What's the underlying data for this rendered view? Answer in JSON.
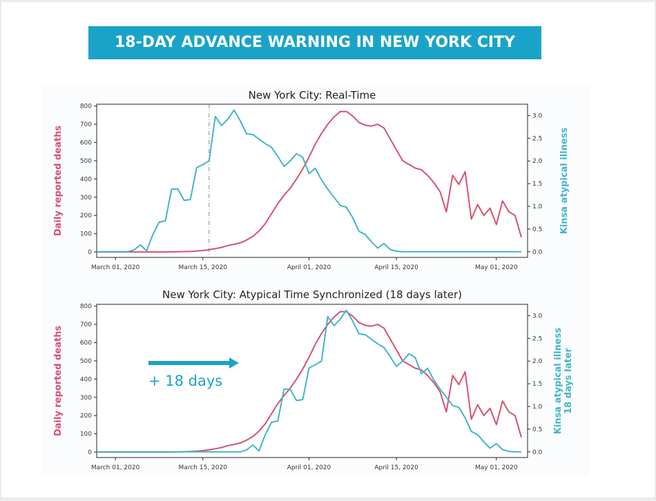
{
  "banner": {
    "title": "18-DAY ADVANCE WARNING IN NEW YORK CITY"
  },
  "colors": {
    "deaths": "#d6506f",
    "illness": "#41b4cc",
    "banner": "#1aa3c8"
  },
  "chart_data": [
    {
      "type": "line",
      "title": "New York City: Real-Time",
      "xlabel": "",
      "ylabel": "Daily reported deaths",
      "ylabel_right": "Kinsa atypical illness",
      "ylabel_right2": "",
      "annotation": "",
      "x_ticks": [
        "March 01, 2020",
        "March 15, 2020",
        "April 01, 2020",
        "April 15, 2020",
        "May 01, 2020"
      ],
      "x_tick_days": [
        0,
        14,
        31,
        45,
        61
      ],
      "xlim_days": [
        -3,
        66
      ],
      "y_left_ticks": [
        0,
        100,
        200,
        300,
        400,
        500,
        600,
        700,
        800
      ],
      "y_left_lim": [
        -30,
        810
      ],
      "y_right_ticks": [
        "0.0",
        "0.5",
        "1.0",
        "1.5",
        "2.0",
        "2.5",
        "3.0"
      ],
      "y_right_lim": [
        -0.125,
        3.25
      ],
      "vline_day": 15,
      "series": [
        {
          "name": "Daily reported deaths",
          "axis": "left",
          "color": "#d6506f",
          "x": [
            -3,
            0,
            2,
            4,
            6,
            8,
            10,
            12,
            13,
            14,
            15,
            16,
            17,
            18,
            19,
            20,
            21,
            22,
            23,
            24,
            25,
            26,
            27,
            28,
            29,
            30,
            31,
            32,
            33,
            34,
            35,
            36,
            37,
            38,
            39,
            40,
            41,
            42,
            43,
            44,
            45,
            46,
            47,
            48,
            49,
            50,
            51,
            52,
            53,
            54,
            55,
            56,
            57,
            58,
            59,
            60,
            61,
            62,
            63,
            64,
            65
          ],
          "y": [
            0,
            0,
            0,
            0,
            0,
            0,
            1,
            3,
            5,
            8,
            12,
            18,
            25,
            35,
            42,
            50,
            65,
            85,
            115,
            155,
            210,
            265,
            310,
            350,
            400,
            455,
            520,
            590,
            650,
            700,
            740,
            770,
            770,
            745,
            710,
            695,
            690,
            700,
            680,
            620,
            560,
            500,
            480,
            460,
            450,
            420,
            380,
            330,
            220,
            420,
            370,
            440,
            180,
            260,
            200,
            240,
            150,
            280,
            220,
            200,
            80
          ]
        },
        {
          "name": "Kinsa atypical illness",
          "axis": "right",
          "color": "#41b4cc",
          "x": [
            -3,
            0,
            2,
            3,
            4,
            5,
            6,
            7,
            8,
            9,
            10,
            11,
            12,
            13,
            14,
            15,
            16,
            17,
            18,
            19,
            20,
            21,
            22,
            23,
            24,
            25,
            26,
            27,
            28,
            29,
            30,
            31,
            32,
            33,
            34,
            35,
            36,
            37,
            38,
            39,
            40,
            41,
            42,
            43,
            44,
            45,
            46,
            47,
            48,
            49,
            50,
            51,
            52,
            53,
            54,
            55,
            56,
            57,
            58,
            59,
            60,
            61,
            62,
            63,
            64,
            65
          ],
          "y": [
            0,
            0,
            0,
            0.04,
            0.15,
            0.02,
            0.38,
            0.65,
            0.68,
            1.38,
            1.38,
            1.13,
            1.15,
            1.85,
            1.92,
            2.0,
            2.98,
            2.78,
            2.92,
            3.12,
            2.88,
            2.6,
            2.58,
            2.48,
            2.38,
            2.3,
            2.1,
            1.88,
            2.0,
            2.16,
            2.08,
            1.72,
            1.84,
            1.58,
            1.38,
            1.2,
            1.02,
            0.98,
            0.75,
            0.45,
            0.38,
            0.22,
            0.08,
            0.18,
            0.05,
            0.01,
            0,
            0,
            0,
            0,
            0,
            0,
            0,
            0,
            0,
            0,
            0,
            0,
            0,
            0,
            0,
            0,
            0,
            0,
            0,
            0
          ]
        }
      ]
    },
    {
      "type": "line",
      "title": "New York City: Atypical Time Synchronized (18 days later)",
      "xlabel": "",
      "ylabel": "Daily reported deaths",
      "ylabel_right": "Kinsa atypical illness",
      "ylabel_right2": "18 days later",
      "annotation": "+ 18 days",
      "x_ticks": [
        "March 01, 2020",
        "March 15, 2020",
        "April 01, 2020",
        "April 15, 2020",
        "May 01, 2020"
      ],
      "x_tick_days": [
        0,
        14,
        31,
        45,
        61
      ],
      "xlim_days": [
        -3,
        66
      ],
      "y_left_ticks": [
        0,
        100,
        200,
        300,
        400,
        500,
        600,
        700,
        800
      ],
      "y_left_lim": [
        -30,
        810
      ],
      "y_right_ticks": [
        "0.0",
        "0.5",
        "1.0",
        "1.5",
        "2.0",
        "2.5",
        "3.0"
      ],
      "y_right_lim": [
        -0.125,
        3.25
      ],
      "vline_day": null,
      "series": [
        {
          "name": "Daily reported deaths",
          "axis": "left",
          "color": "#d6506f",
          "x": [
            -3,
            0,
            2,
            4,
            6,
            8,
            10,
            12,
            13,
            14,
            15,
            16,
            17,
            18,
            19,
            20,
            21,
            22,
            23,
            24,
            25,
            26,
            27,
            28,
            29,
            30,
            31,
            32,
            33,
            34,
            35,
            36,
            37,
            38,
            39,
            40,
            41,
            42,
            43,
            44,
            45,
            46,
            47,
            48,
            49,
            50,
            51,
            52,
            53,
            54,
            55,
            56,
            57,
            58,
            59,
            60,
            61,
            62,
            63,
            64,
            65
          ],
          "y": [
            0,
            0,
            0,
            0,
            0,
            0,
            1,
            3,
            5,
            8,
            12,
            18,
            25,
            35,
            42,
            50,
            65,
            85,
            115,
            155,
            210,
            265,
            310,
            350,
            400,
            455,
            520,
            590,
            650,
            700,
            740,
            770,
            770,
            745,
            710,
            695,
            690,
            700,
            680,
            620,
            560,
            500,
            480,
            460,
            450,
            420,
            380,
            330,
            220,
            420,
            370,
            440,
            180,
            260,
            200,
            240,
            150,
            280,
            220,
            200,
            80
          ]
        },
        {
          "name": "Kinsa atypical illness",
          "axis": "right",
          "color": "#41b4cc",
          "x": [
            -3,
            0,
            2,
            4,
            6,
            8,
            10,
            12,
            14,
            16,
            18,
            20,
            21,
            22,
            23,
            24,
            25,
            26,
            27,
            28,
            29,
            30,
            31,
            32,
            33,
            34,
            35,
            36,
            37,
            38,
            39,
            40,
            41,
            42,
            43,
            44,
            45,
            46,
            47,
            48,
            49,
            50,
            51,
            52,
            53,
            54,
            55,
            56,
            57,
            58,
            59,
            60,
            61,
            62,
            63,
            64,
            65
          ],
          "y": [
            0,
            0,
            0,
            0,
            0,
            0,
            0,
            0,
            0,
            0,
            0,
            0,
            0.04,
            0.15,
            0.02,
            0.38,
            0.65,
            0.68,
            1.38,
            1.38,
            1.13,
            1.15,
            1.85,
            1.92,
            2.0,
            2.98,
            2.78,
            2.92,
            3.12,
            2.88,
            2.6,
            2.58,
            2.48,
            2.38,
            2.3,
            2.1,
            1.88,
            2.0,
            2.16,
            2.08,
            1.72,
            1.84,
            1.58,
            1.38,
            1.2,
            1.02,
            0.98,
            0.75,
            0.45,
            0.38,
            0.22,
            0.08,
            0.18,
            0.05,
            0.01,
            0,
            0
          ]
        }
      ]
    }
  ]
}
